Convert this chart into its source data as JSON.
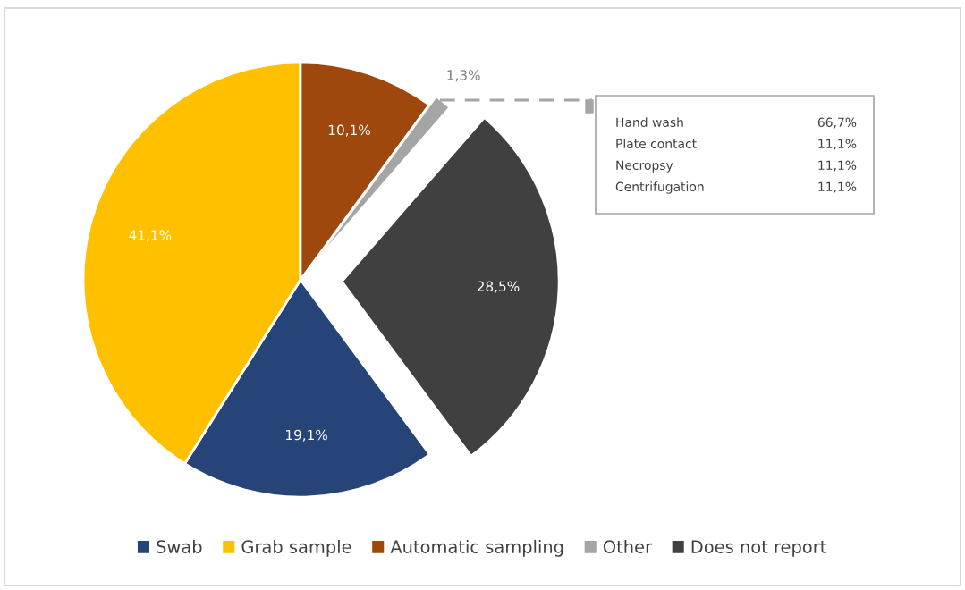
{
  "chart_data": {
    "type": "pie",
    "categories": [
      "Swab",
      "Grab sample",
      "Automatic sampling",
      "Other",
      "Does not report"
    ],
    "values": [
      19.1,
      41.1,
      10.1,
      1.3,
      28.5
    ],
    "colors": [
      "#264478",
      "#ffc000",
      "#9e480e",
      "#a5a5a5",
      "#404040"
    ],
    "value_labels": [
      "19,1%",
      "41,1%",
      "10,1%",
      "1,3%",
      "28,5%"
    ],
    "annotations": [
      "Hand wash",
      "66,7%",
      "Plate contact",
      "11,1%",
      "Necropsy",
      "11,1%",
      "Centrifugation",
      "11,1%"
    ],
    "legend": "bottom"
  }
}
